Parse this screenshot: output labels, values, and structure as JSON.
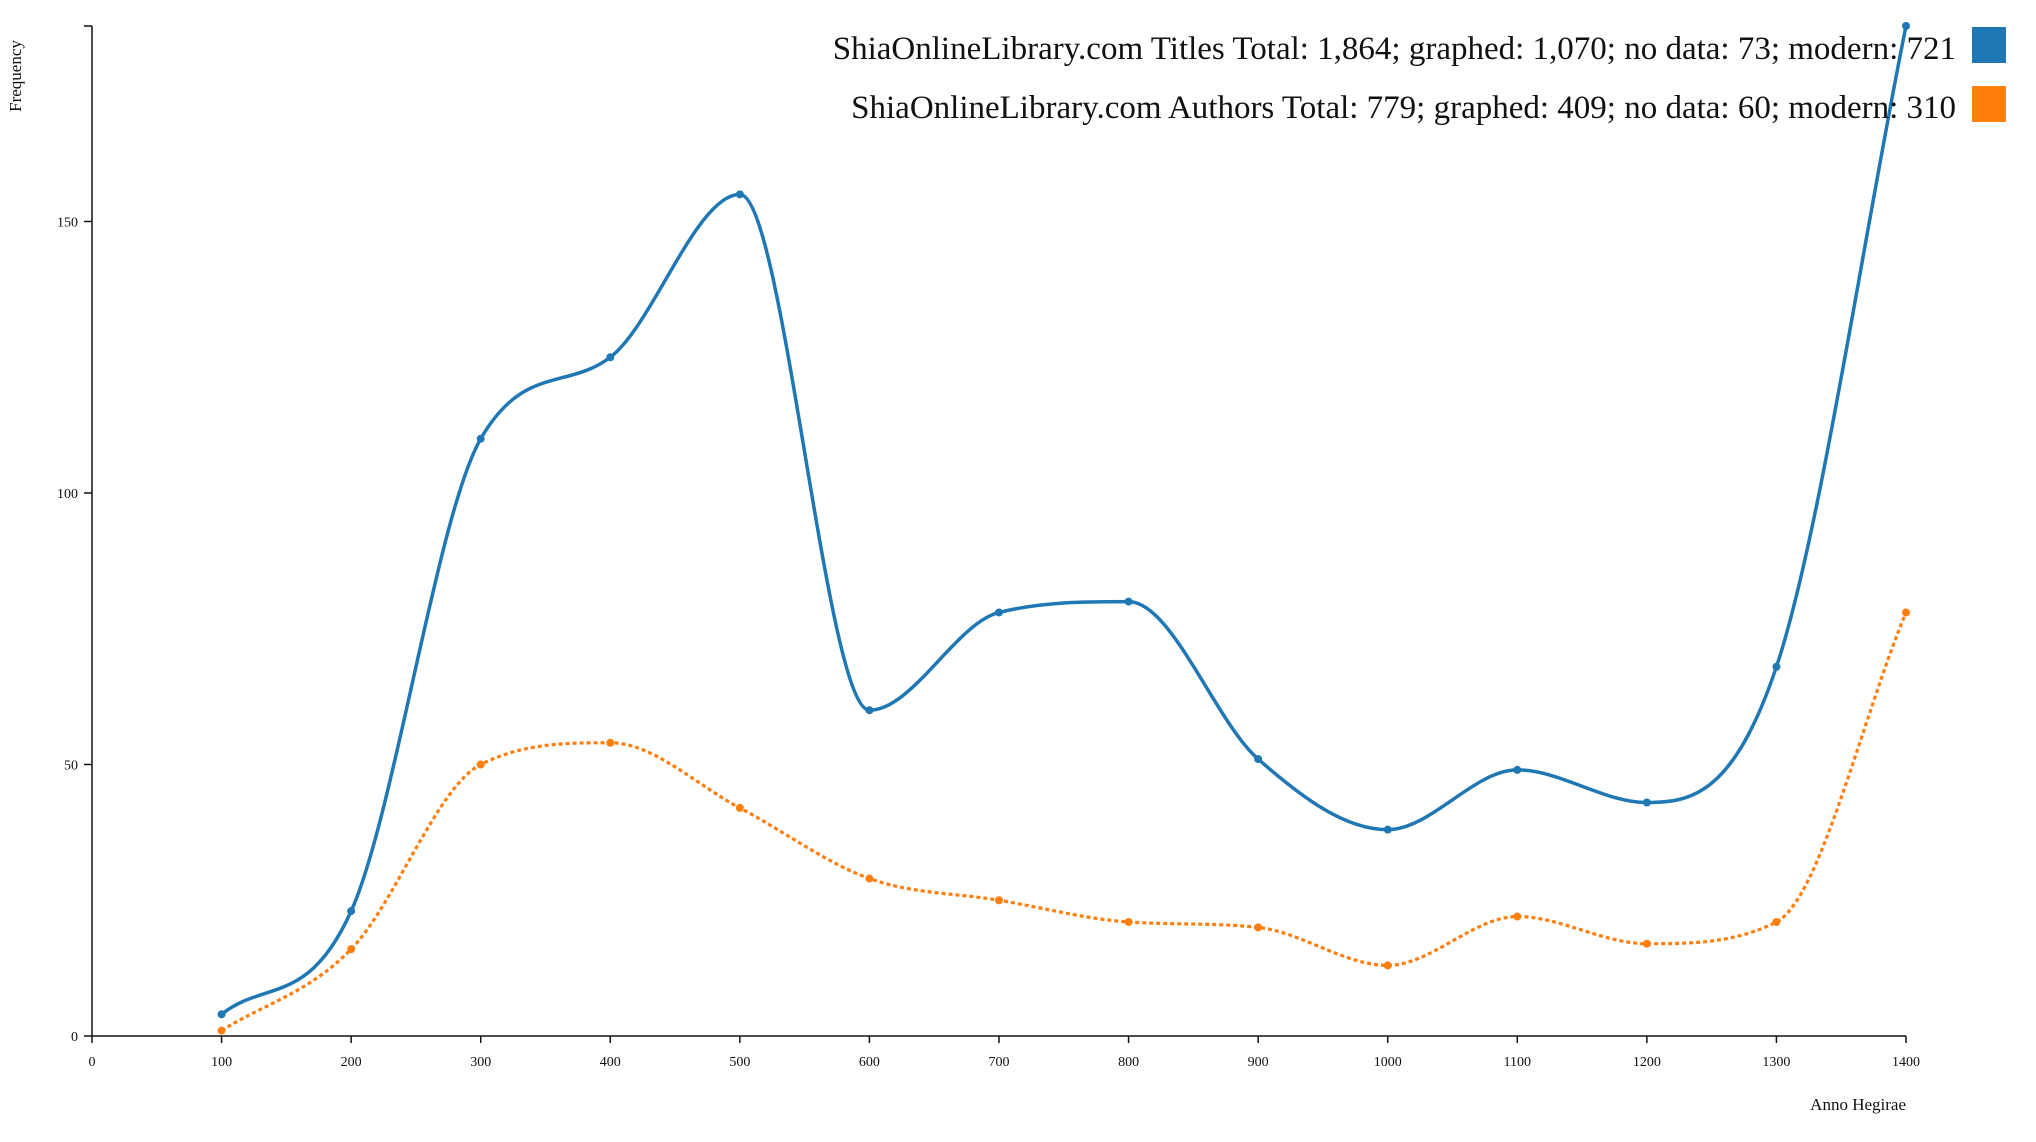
{
  "chart_data": {
    "type": "line",
    "x": [
      100,
      200,
      300,
      400,
      500,
      600,
      700,
      800,
      900,
      1000,
      1100,
      1200,
      1300,
      1400
    ],
    "xlabel": "Anno Hegirae",
    "ylabel": "Frequency",
    "xlim": [
      0,
      1400
    ],
    "ylim": [
      0,
      186
    ],
    "x_ticks": [
      0,
      100,
      200,
      300,
      400,
      500,
      600,
      700,
      800,
      900,
      1000,
      1100,
      1200,
      1300,
      1400
    ],
    "y_ticks": [
      0,
      50,
      100,
      150
    ],
    "grid": false,
    "legend_position": "top-right",
    "series": [
      {
        "name": "ShiaOnlineLibrary.com Titles Total: 1,864; graphed: 1,070; no data: 73; modern: 721",
        "color": "#1f77b4",
        "style": "solid",
        "values": [
          4,
          23,
          110,
          125,
          155,
          60,
          78,
          80,
          51,
          38,
          49,
          43,
          68,
          186
        ]
      },
      {
        "name": "ShiaOnlineLibrary.com Authors Total: 779; graphed: 409; no data: 60; modern: 310",
        "color": "#ff7f0e",
        "style": "dotted",
        "values": [
          1,
          16,
          50,
          54,
          42,
          29,
          25,
          21,
          20,
          13,
          22,
          17,
          21,
          78
        ]
      }
    ]
  }
}
